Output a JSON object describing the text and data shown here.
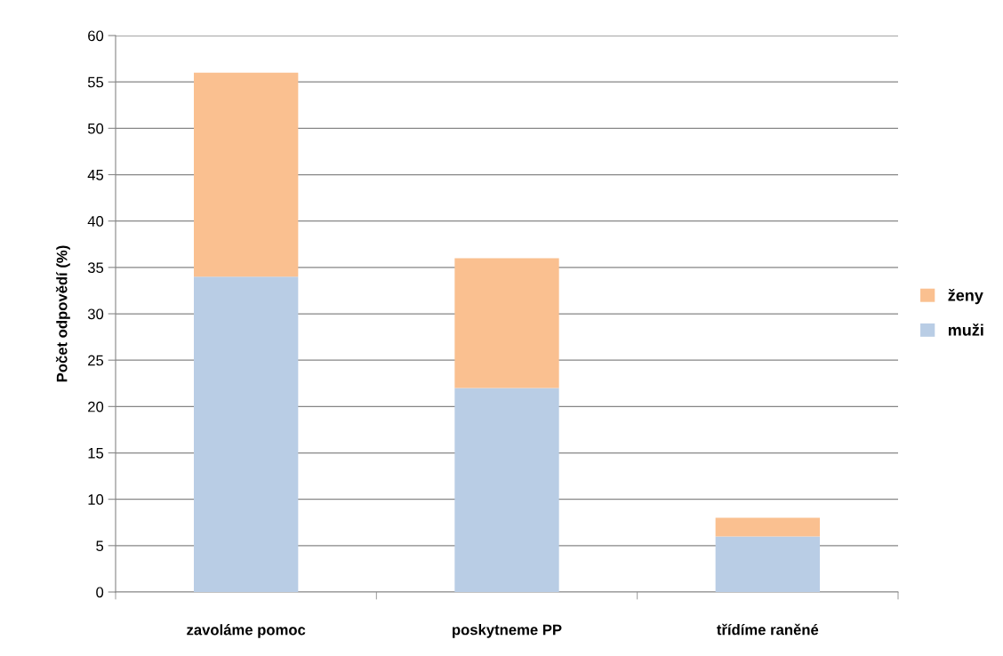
{
  "chart_data": {
    "type": "bar",
    "stacked": true,
    "ylabel": "Počet odpovědí (%)",
    "categories": [
      "zavoláme pomoc",
      "poskytneme PP",
      "třídíme raněné"
    ],
    "series": [
      {
        "name": "muži",
        "color": "#b9cde5",
        "values": [
          34,
          22,
          6
        ]
      },
      {
        "name": "ženy",
        "color": "#fac090",
        "values": [
          22,
          14,
          2
        ]
      }
    ],
    "ylim": [
      0,
      60
    ],
    "yticks": [
      0,
      5,
      10,
      15,
      20,
      25,
      30,
      35,
      40,
      45,
      50,
      55,
      60
    ],
    "grid": "y",
    "legend": "right"
  }
}
